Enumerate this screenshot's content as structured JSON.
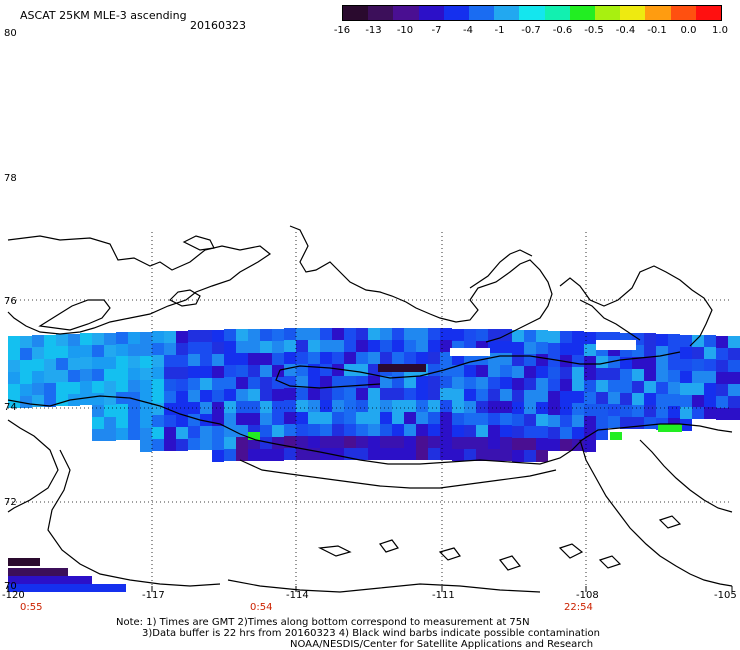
{
  "title": "ASCAT 25KM MLE-3 ascending",
  "date": "20160323",
  "colorbar": {
    "labels": [
      "-16",
      "-13",
      "-10",
      "-7",
      "-4",
      "-1",
      "-0.7",
      "-0.6",
      "-0.5",
      "-0.4",
      "-0.1",
      "0.0",
      "1.0"
    ],
    "colors": [
      "#2a0a2e",
      "#3c0f5a",
      "#4a0f92",
      "#2c10c8",
      "#1530ee",
      "#1a6cf2",
      "#22a8f0",
      "#14e6ee",
      "#12f0b0",
      "#22ee22",
      "#a8f010",
      "#eeea10",
      "#ff9c10",
      "#ff5010",
      "#ff1010"
    ]
  },
  "map": {
    "lat_labels": [
      "80",
      "78",
      "76",
      "74",
      "72",
      "70"
    ],
    "lon_labels": [
      "-120",
      "-117",
      "-114",
      "-111",
      "-108",
      "-105"
    ]
  },
  "times": [
    "0:55",
    "0:54",
    "22:54"
  ],
  "notes": {
    "line1": "Note: 1) Times are GMT 2)Times along bottom correspond to measurement at 75N",
    "line2": "3)Data buffer is 22 hrs from 20160323 4) Black wind barbs indicate possible contamination",
    "line3": "NOAA/NESDIS/Center for Satellite Applications and Research"
  }
}
